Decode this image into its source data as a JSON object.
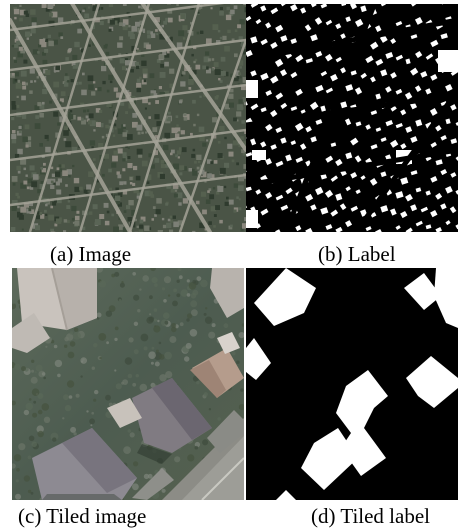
{
  "figure": {
    "panels": [
      {
        "id": "a",
        "caption": "(a) Image",
        "content": "aerial photograph of suburban street grid"
      },
      {
        "id": "b",
        "caption": "(b) Label",
        "content": "binary building mask, white buildings on black"
      },
      {
        "id": "c",
        "caption": "(c) Tiled image",
        "content": "zoomed aerial photograph of houses and street"
      },
      {
        "id": "d",
        "caption": "(d) Tiled label",
        "content": "zoomed binary building mask"
      }
    ]
  },
  "colors": {
    "background": "#ffffff",
    "mask_building": "#ffffff",
    "mask_background": "#000000",
    "aerial_base": "#4f5a4a",
    "aerial_road": "#9a9a90"
  }
}
